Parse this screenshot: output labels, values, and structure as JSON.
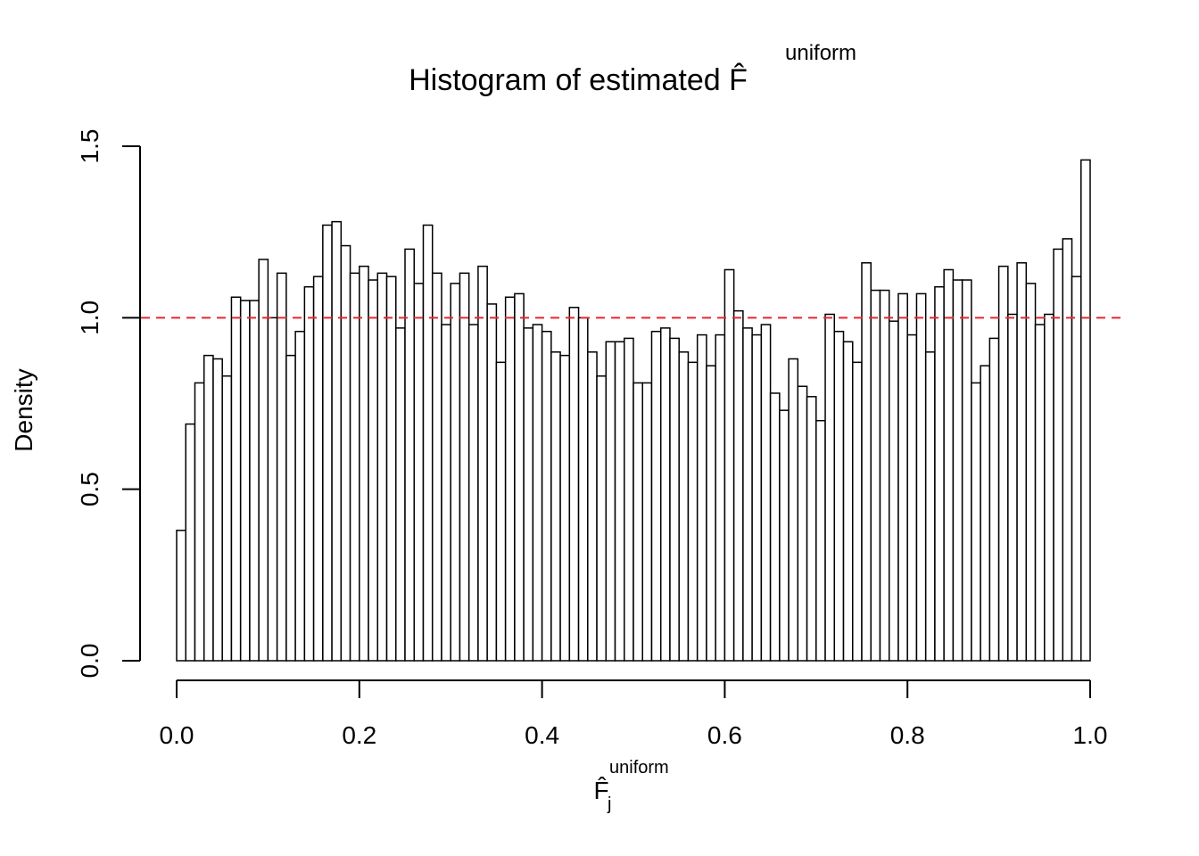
{
  "chart_data": {
    "type": "histogram",
    "title": "Histogram of estimated F̂",
    "title_sup": "uniform",
    "x_label": "F̂",
    "x_label_sub": "j",
    "x_label_sup": "uniform",
    "y_label": "Density",
    "bar_color": "#ffffff",
    "edge_color": "#000000",
    "bins": [
      0,
      0.01,
      0.02,
      0.03,
      0.04,
      0.05,
      0.06,
      0.07,
      0.08,
      0.09,
      0.1,
      0.11,
      0.12,
      0.13,
      0.14,
      0.15,
      0.16,
      0.17,
      0.18,
      0.19,
      0.2,
      0.21,
      0.22,
      0.23,
      0.24,
      0.25,
      0.26,
      0.27,
      0.28,
      0.29,
      0.3,
      0.31,
      0.32,
      0.33,
      0.34,
      0.35,
      0.36,
      0.37,
      0.38,
      0.39,
      0.4,
      0.41,
      0.42,
      0.43,
      0.44,
      0.45,
      0.46,
      0.47,
      0.48,
      0.49,
      0.5,
      0.51,
      0.52,
      0.53,
      0.54,
      0.55,
      0.56,
      0.57,
      0.58,
      0.59,
      0.6,
      0.61,
      0.62,
      0.63,
      0.64,
      0.65,
      0.66,
      0.67,
      0.68,
      0.69,
      0.7,
      0.71,
      0.72,
      0.73,
      0.74,
      0.75,
      0.76,
      0.77,
      0.78,
      0.79,
      0.8,
      0.81,
      0.82,
      0.83,
      0.84,
      0.85,
      0.86,
      0.87,
      0.88,
      0.89,
      0.9,
      0.91,
      0.92,
      0.93,
      0.94,
      0.95,
      0.96,
      0.97,
      0.98,
      0.99,
      1
    ],
    "values": [
      0.38,
      0.69,
      0.81,
      0.89,
      0.88,
      0.83,
      1.06,
      1.05,
      1.05,
      1.17,
      1.0,
      1.13,
      0.89,
      0.96,
      1.09,
      1.12,
      1.27,
      1.28,
      1.21,
      1.13,
      1.15,
      1.11,
      1.13,
      1.12,
      0.97,
      1.2,
      1.1,
      1.27,
      1.13,
      0.98,
      1.1,
      1.13,
      0.98,
      1.15,
      1.04,
      0.87,
      1.06,
      1.07,
      0.97,
      0.98,
      0.96,
      0.9,
      0.89,
      1.03,
      1.0,
      0.9,
      0.83,
      0.93,
      0.93,
      0.94,
      0.81,
      0.81,
      0.96,
      0.97,
      0.94,
      0.9,
      0.87,
      0.95,
      0.86,
      0.95,
      1.14,
      1.02,
      0.97,
      0.95,
      0.98,
      0.78,
      0.73,
      0.88,
      0.8,
      0.77,
      0.7,
      1.01,
      0.96,
      0.93,
      0.87,
      1.16,
      1.08,
      1.08,
      0.99,
      1.07,
      0.95,
      1.07,
      0.9,
      1.09,
      1.14,
      1.11,
      1.11,
      0.81,
      0.86,
      0.94,
      1.15,
      1.01,
      1.16,
      1.1,
      0.98,
      1.01,
      1.2,
      1.23,
      1.12,
      1.46
    ],
    "hline": {
      "value": 1,
      "color": "#e8282b",
      "style": "dashed"
    },
    "xlim": [
      0,
      1
    ],
    "xticks": [
      {
        "value": 0,
        "label": "0.0"
      },
      0.2,
      0.4,
      0.6,
      0.8,
      {
        "value": 1,
        "label": "1.0"
      }
    ],
    "ylim": [
      0,
      1.5
    ],
    "yticks": [
      {
        "value": 0,
        "label": "0.0"
      },
      0.5,
      {
        "value": 1,
        "label": "1.0"
      },
      1.5
    ]
  }
}
